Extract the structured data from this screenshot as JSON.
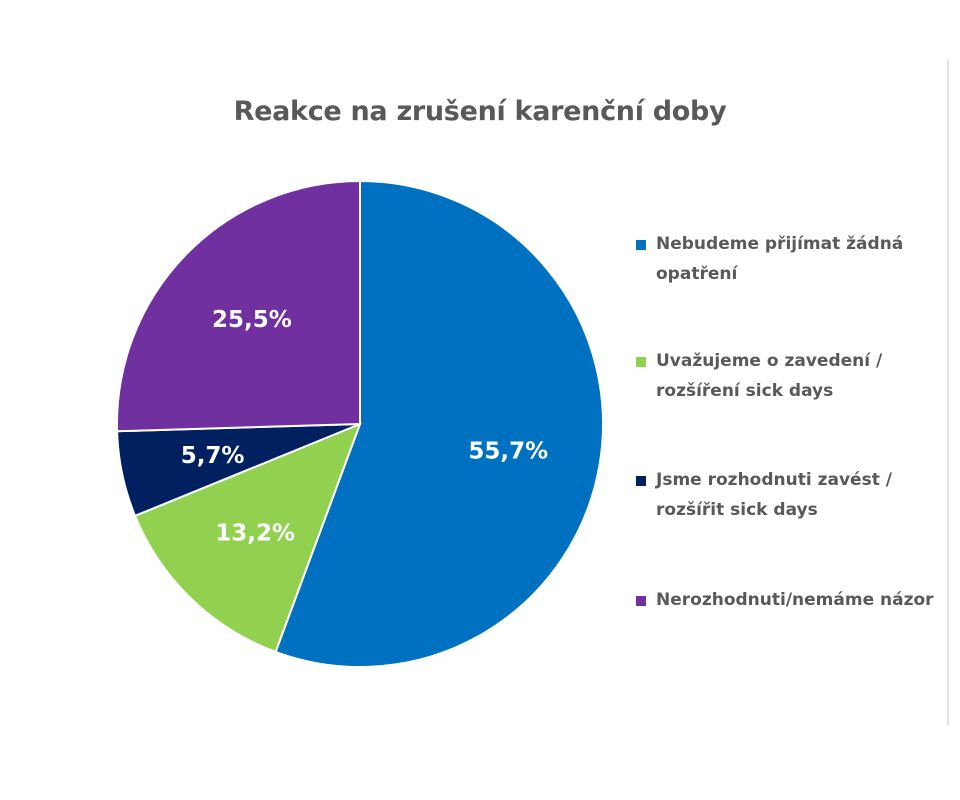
{
  "chart_data": {
    "type": "pie",
    "title": "Reakce na zrušení karenční doby",
    "slices": [
      {
        "label": "Nebudeme přijímat žádná opatření",
        "value": 55.7,
        "value_label": "55,7%",
        "color": "#0070C0"
      },
      {
        "label": "Uvažujeme o zavedení / rozšíření sick days",
        "value": 13.2,
        "value_label": "13,2%",
        "color": "#92D050"
      },
      {
        "label": "Jsme rozhodnuti zavést / rozšířit sick days",
        "value": 5.7,
        "value_label": "5,7%",
        "color": "#002060"
      },
      {
        "label": "Nerozhodnuti/nemáme názor",
        "value": 25.5,
        "value_label": "25,5%",
        "color": "#7030A0"
      }
    ],
    "legend_position": "right",
    "start_angle": "12 o'clock",
    "direction": "clockwise"
  }
}
